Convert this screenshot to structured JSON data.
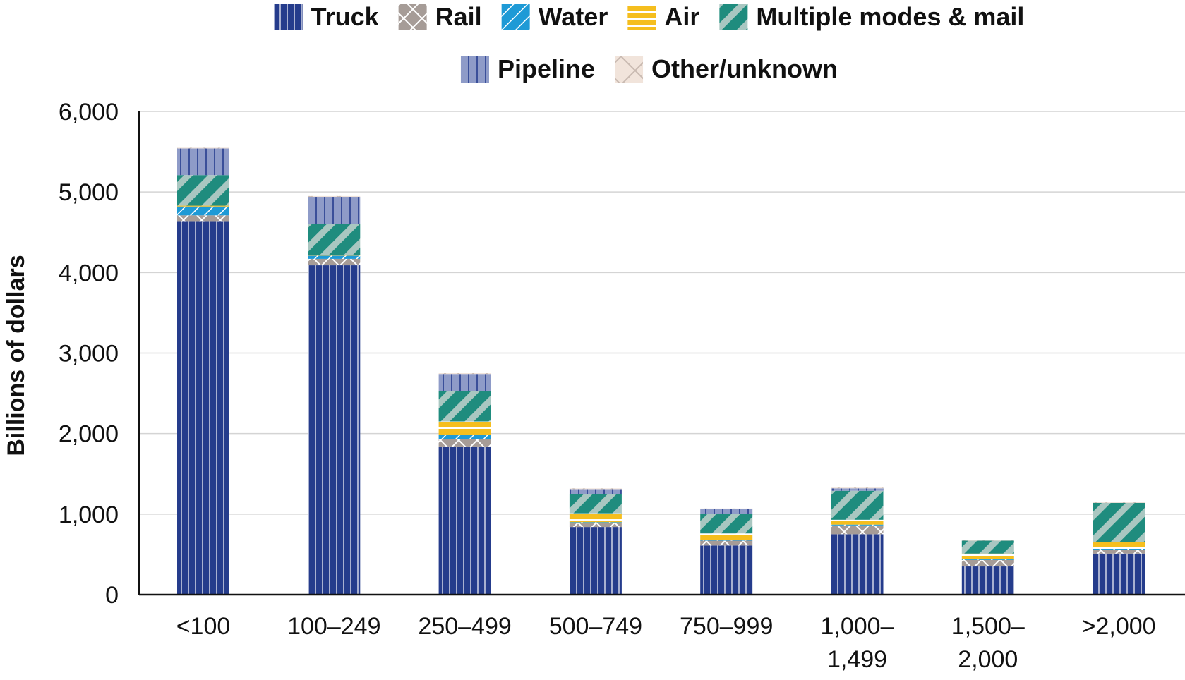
{
  "chart_data": {
    "type": "bar",
    "stacked": true,
    "title": "",
    "xlabel": "",
    "ylabel": "Billions of dollars",
    "ylim": [
      0,
      6000
    ],
    "yticks": [
      0,
      1000,
      2000,
      3000,
      4000,
      5000,
      6000
    ],
    "ytick_labels": [
      "0",
      "1,000",
      "2,000",
      "3,000",
      "4,000",
      "5,000",
      "6,000"
    ],
    "grid": true,
    "legend_position": "top-center",
    "categories": [
      [
        "<100"
      ],
      [
        "100–249"
      ],
      [
        "250–499"
      ],
      [
        "500–749"
      ],
      [
        "750–999"
      ],
      [
        "1,000–",
        "1,499"
      ],
      [
        "1,500–",
        "2,000"
      ],
      [
        ">2,000"
      ]
    ],
    "series": [
      {
        "name": "Truck",
        "color": "#253C8C",
        "values": [
          4630,
          4090,
          1840,
          840,
          610,
          750,
          350,
          510
        ]
      },
      {
        "name": "Rail",
        "color": "#A69C97",
        "values": [
          80,
          80,
          90,
          50,
          60,
          110,
          80,
          50
        ]
      },
      {
        "name": "Water",
        "color": "#1E9AD6",
        "values": [
          110,
          40,
          50,
          10,
          10,
          10,
          10,
          10
        ]
      },
      {
        "name": "Air",
        "color": "#F5BE1E",
        "values": [
          10,
          10,
          170,
          110,
          80,
          60,
          70,
          80
        ]
      },
      {
        "name": "Multiple modes & mail",
        "color": "#1F8C7E",
        "values": [
          380,
          380,
          380,
          240,
          240,
          360,
          160,
          490
        ]
      },
      {
        "name": "Pipeline",
        "color": "#8E9BC8",
        "values": [
          330,
          340,
          210,
          60,
          60,
          30,
          0,
          0
        ]
      },
      {
        "name": "Other/unknown",
        "color": "#E8D9CF",
        "values": [
          10,
          10,
          10,
          10,
          10,
          10,
          10,
          10
        ]
      }
    ]
  }
}
